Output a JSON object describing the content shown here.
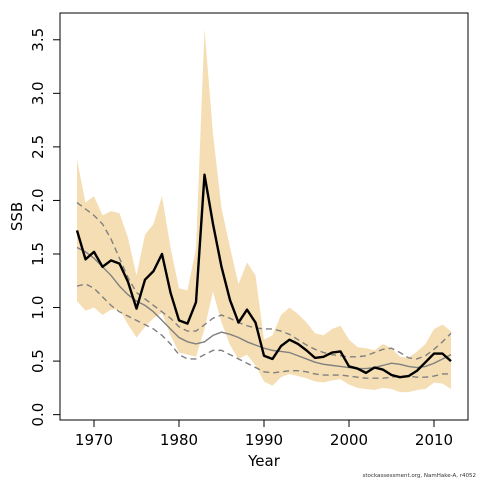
{
  "chart_data": {
    "type": "line",
    "xlabel": "Year",
    "ylabel": "SSB",
    "xlim": [
      1966,
      2014
    ],
    "ylim": [
      -0.05,
      3.75
    ],
    "x_ticks": [
      1970,
      1980,
      1990,
      2000,
      2010
    ],
    "y_ticks": [
      0.0,
      0.5,
      1.0,
      1.5,
      2.0,
      2.5,
      3.0,
      3.5
    ],
    "y_tick_labels": [
      "0.0",
      "0.5",
      "1.0",
      "1.5",
      "2.0",
      "2.5",
      "3.0",
      "3.5"
    ],
    "grid": false,
    "legend": "none",
    "credit": "stockassessment.org, NamHake-A, r4052",
    "colors": {
      "band": "#f5deb3",
      "estimate": "#000000",
      "smooth": "#808080",
      "smooth_ci": "#808080"
    },
    "x": [
      1968,
      1969,
      1970,
      1971,
      1972,
      1973,
      1974,
      1975,
      1976,
      1977,
      1978,
      1979,
      1980,
      1981,
      1982,
      1983,
      1984,
      1985,
      1986,
      1987,
      1988,
      1989,
      1990,
      1991,
      1992,
      1993,
      1994,
      1995,
      1996,
      1997,
      1998,
      1999,
      2000,
      2001,
      2002,
      2003,
      2004,
      2005,
      2006,
      2007,
      2008,
      2009,
      2010,
      2011,
      2012
    ],
    "series": [
      {
        "role": "band-upper",
        "values": [
          2.38,
          1.98,
          2.04,
          1.86,
          1.9,
          1.88,
          1.65,
          1.3,
          1.68,
          1.78,
          2.04,
          1.56,
          1.18,
          1.16,
          1.55,
          3.6,
          2.62,
          1.93,
          1.56,
          1.22,
          1.42,
          1.3,
          0.7,
          0.74,
          0.93,
          1.0,
          0.94,
          0.86,
          0.76,
          0.74,
          0.8,
          0.83,
          0.7,
          0.63,
          0.62,
          0.6,
          0.66,
          0.62,
          0.54,
          0.53,
          0.59,
          0.66,
          0.8,
          0.84,
          0.78
        ]
      },
      {
        "role": "band-lower",
        "values": [
          1.06,
          0.97,
          1.0,
          0.93,
          0.98,
          0.98,
          0.84,
          0.72,
          0.82,
          0.9,
          0.95,
          0.74,
          0.58,
          0.56,
          0.54,
          0.8,
          1.15,
          0.86,
          0.65,
          0.52,
          0.56,
          0.46,
          0.31,
          0.27,
          0.35,
          0.38,
          0.36,
          0.34,
          0.31,
          0.3,
          0.32,
          0.33,
          0.28,
          0.25,
          0.24,
          0.23,
          0.25,
          0.24,
          0.21,
          0.21,
          0.23,
          0.24,
          0.3,
          0.29,
          0.24
        ]
      },
      {
        "role": "estimate",
        "values": [
          1.72,
          1.45,
          1.52,
          1.38,
          1.44,
          1.41,
          1.24,
          0.99,
          1.26,
          1.34,
          1.5,
          1.14,
          0.88,
          0.85,
          1.05,
          2.24,
          1.78,
          1.38,
          1.07,
          0.86,
          0.98,
          0.86,
          0.55,
          0.52,
          0.64,
          0.7,
          0.66,
          0.6,
          0.53,
          0.54,
          0.58,
          0.59,
          0.45,
          0.43,
          0.39,
          0.44,
          0.42,
          0.37,
          0.35,
          0.36,
          0.41,
          0.49,
          0.57,
          0.57,
          0.5
        ]
      },
      {
        "role": "smooth",
        "values": [
          1.56,
          1.52,
          1.46,
          1.38,
          1.3,
          1.2,
          1.12,
          1.06,
          1.02,
          0.96,
          0.88,
          0.8,
          0.72,
          0.68,
          0.66,
          0.68,
          0.74,
          0.77,
          0.75,
          0.72,
          0.68,
          0.65,
          0.62,
          0.6,
          0.59,
          0.58,
          0.55,
          0.52,
          0.49,
          0.47,
          0.46,
          0.45,
          0.44,
          0.43,
          0.43,
          0.44,
          0.46,
          0.48,
          0.47,
          0.45,
          0.44,
          0.45,
          0.48,
          0.52,
          0.56
        ]
      },
      {
        "role": "smooth-upper",
        "values": [
          1.98,
          1.92,
          1.86,
          1.78,
          1.64,
          1.46,
          1.28,
          1.14,
          1.08,
          1.02,
          0.96,
          0.9,
          0.82,
          0.78,
          0.78,
          0.84,
          0.9,
          0.93,
          0.9,
          0.86,
          0.83,
          0.81,
          0.8,
          0.8,
          0.78,
          0.75,
          0.7,
          0.65,
          0.61,
          0.58,
          0.56,
          0.55,
          0.54,
          0.54,
          0.55,
          0.58,
          0.61,
          0.62,
          0.58,
          0.53,
          0.52,
          0.55,
          0.61,
          0.68,
          0.76
        ]
      },
      {
        "role": "smooth-lower",
        "values": [
          1.2,
          1.22,
          1.18,
          1.1,
          1.02,
          0.96,
          0.92,
          0.88,
          0.84,
          0.8,
          0.74,
          0.66,
          0.56,
          0.52,
          0.52,
          0.56,
          0.6,
          0.6,
          0.56,
          0.52,
          0.48,
          0.44,
          0.4,
          0.39,
          0.4,
          0.41,
          0.41,
          0.4,
          0.38,
          0.37,
          0.37,
          0.37,
          0.36,
          0.35,
          0.34,
          0.34,
          0.34,
          0.35,
          0.36,
          0.36,
          0.35,
          0.35,
          0.36,
          0.38,
          0.38
        ]
      }
    ]
  }
}
